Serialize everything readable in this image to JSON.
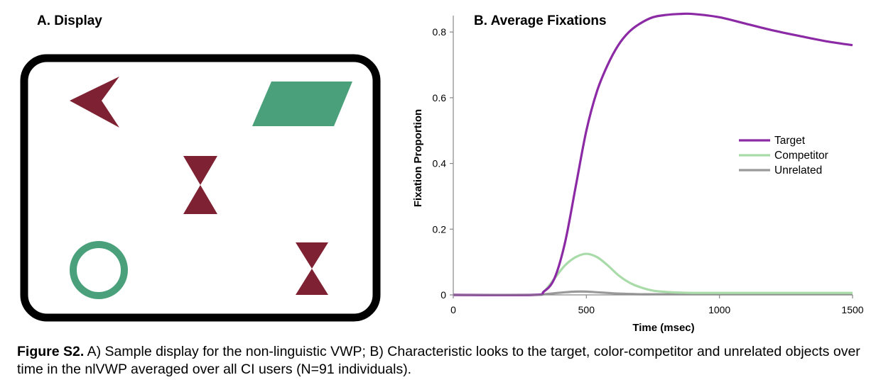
{
  "panel_a": {
    "title": "A. Display",
    "shapes": [
      {
        "name": "arrowhead",
        "color": "#7e2233"
      },
      {
        "name": "parallelogram",
        "color": "#4aa07a"
      },
      {
        "name": "hourglass-center",
        "color": "#7e2233"
      },
      {
        "name": "ring",
        "color": "#4aa07a"
      },
      {
        "name": "hourglass-right",
        "color": "#7e2233"
      }
    ]
  },
  "chart_data": {
    "type": "line",
    "title": "B. Average Fixations",
    "xlabel": "Time (msec)",
    "ylabel": "Fixation Proportion",
    "xlim": [
      0,
      1500
    ],
    "ylim": [
      0,
      0.85
    ],
    "xticks": [
      0,
      500,
      1000,
      1500
    ],
    "yticks": [
      0,
      0.2,
      0.4,
      0.6,
      0.8
    ],
    "ytick_labels": [
      "0",
      "0.2",
      "0.4",
      "0.6",
      "0.8"
    ],
    "legend_position": "right",
    "x": [
      0,
      300,
      340,
      380,
      420,
      460,
      500,
      540,
      580,
      620,
      660,
      700,
      750,
      800,
      850,
      900,
      1000,
      1100,
      1200,
      1300,
      1400,
      1500
    ],
    "series": [
      {
        "name": "Target",
        "color": "#8b2aa4",
        "values": [
          0,
          0,
          0.01,
          0.05,
          0.16,
          0.33,
          0.5,
          0.62,
          0.7,
          0.76,
          0.8,
          0.825,
          0.845,
          0.852,
          0.855,
          0.855,
          0.845,
          0.825,
          0.805,
          0.788,
          0.772,
          0.76
        ]
      },
      {
        "name": "Competitor",
        "color": "#a8dba8",
        "values": [
          0,
          0,
          0.01,
          0.05,
          0.09,
          0.115,
          0.125,
          0.115,
          0.09,
          0.06,
          0.038,
          0.024,
          0.013,
          0.009,
          0.007,
          0.006,
          0.006,
          0.006,
          0.006,
          0.006,
          0.006,
          0.006
        ]
      },
      {
        "name": "Unrelated",
        "color": "#9a9a9a",
        "values": [
          0,
          0,
          0.002,
          0.005,
          0.008,
          0.01,
          0.01,
          0.008,
          0.006,
          0.004,
          0.003,
          0.002,
          0.002,
          0.002,
          0.002,
          0.002,
          0.002,
          0.002,
          0.002,
          0.002,
          0.002,
          0.002
        ]
      }
    ]
  },
  "caption": {
    "label": "Figure S2.",
    "text": " A) Sample display for the non-linguistic VWP; B) Characteristic looks to the target, color-competitor and unrelated objects over time in the nlVWP averaged over all CI users (N=91 individuals)."
  }
}
